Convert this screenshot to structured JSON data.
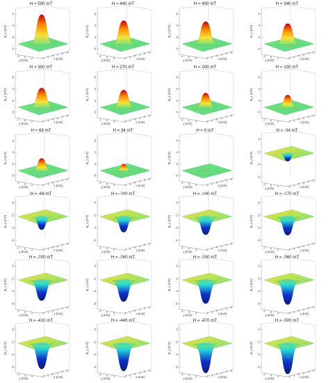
{
  "figure": {
    "panels": [
      {
        "title": "H = 500 mT",
        "peak": 6.0
      },
      {
        "title": "H = 440 mT",
        "peak": 4.8
      },
      {
        "title": "H = 400 mT",
        "peak": 4.6
      },
      {
        "title": "H = 340 mT",
        "peak": 4.2
      },
      {
        "title": "H = 300 mT",
        "peak": 4.0
      },
      {
        "title": "H = 270 mT",
        "peak": 3.6
      },
      {
        "title": "H = 200 mT",
        "peak": 3.0
      },
      {
        "title": "H = 100 mT",
        "peak": 2.6
      },
      {
        "title": "H = 68 mT",
        "peak": 2.6
      },
      {
        "title": "H = 34 mT",
        "peak": 1.5
      },
      {
        "title": "H = 0 mT",
        "peak": 0.1
      },
      {
        "title": "H = -34 mT",
        "peak": -1.5
      },
      {
        "title": "H = -68 mT",
        "peak": -2.5
      },
      {
        "title": "H = -100 mT",
        "peak": -3.0
      },
      {
        "title": "H = -140 mT",
        "peak": -3.5
      },
      {
        "title": "H = -170 mT",
        "peak": -3.6
      },
      {
        "title": "H = -200 mT",
        "peak": -4.0
      },
      {
        "title": "H = -260 mT",
        "peak": -4.2
      },
      {
        "title": "H = -330 mT",
        "peak": -4.6
      },
      {
        "title": "H = -360 mT",
        "peak": -4.8
      },
      {
        "title": "H = -410 mT",
        "peak": -5.0
      },
      {
        "title": "H = -440 mT",
        "peak": -5.4
      },
      {
        "title": "H = -470 mT",
        "peak": -5.8
      },
      {
        "title": "H = -500 mT",
        "peak": -6.0
      }
    ],
    "zlabel": "B_z (mT)",
    "xlabel": "x (mm)",
    "ylabel": "y (mm)",
    "pos_ticks": [
      "0",
      "2",
      "4",
      "6"
    ],
    "neg_ticks": [
      "-6",
      "-4",
      "-2",
      "0"
    ],
    "axis_ticks": [
      "-2",
      "-1",
      "0",
      "1",
      "2",
      "3"
    ],
    "colors": {
      "red": "#c0001a",
      "orange": "#ff8a00",
      "yellow": "#f7e23a",
      "green": "#74e37a",
      "cyan": "#26d5d8",
      "blue": "#1030c8",
      "darkblue": "#0b1b7a"
    }
  }
}
